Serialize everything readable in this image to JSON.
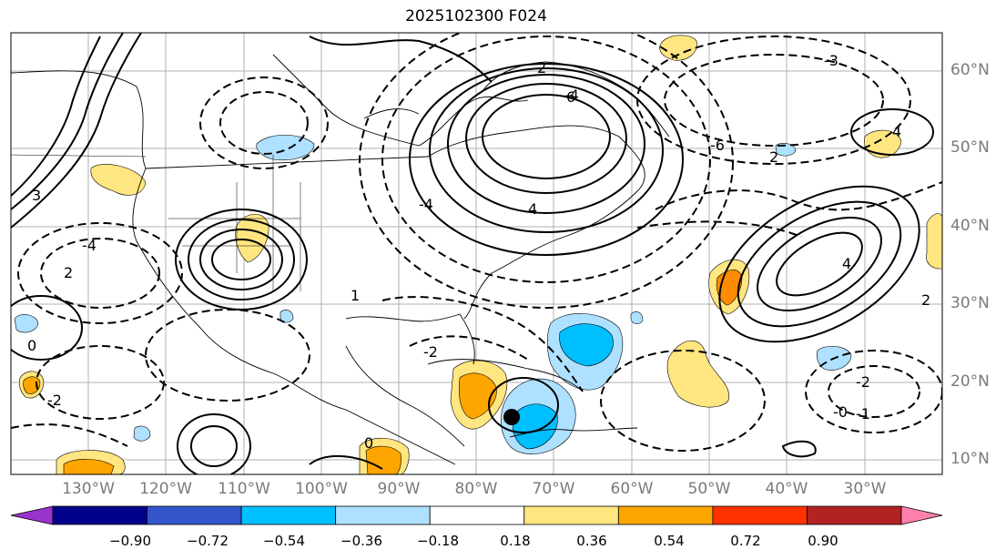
{
  "title": "2025102300 F024",
  "lat_labels": [
    "60°N",
    "50°N",
    "40°N",
    "30°N",
    "20°N",
    "10°N"
  ],
  "lon_labels": [
    "130°W",
    "120°W",
    "110°W",
    "100°W",
    "90°W",
    "80°W",
    "70°W",
    "60°W",
    "50°W",
    "40°W",
    "30°W"
  ],
  "contour_labels": [
    "2",
    "-2",
    "4",
    "-4",
    "6",
    "-6",
    "0",
    "1",
    "-1",
    "3",
    "-3",
    "-0"
  ],
  "marker": "storm-center",
  "colorbar": {
    "ticks": [
      "−0.90",
      "−0.72",
      "−0.54",
      "−0.36",
      "−0.18",
      "0.18",
      "0.36",
      "0.54",
      "0.72",
      "0.90"
    ],
    "colors": [
      "#9933cc",
      "#00008b",
      "#3355cc",
      "#00bfff",
      "#aee0ff",
      "#ffffff",
      "#ffe680",
      "#ffa500",
      "#ff3300",
      "#b22222",
      "#ff80aa"
    ],
    "extend": "both"
  },
  "colors": {
    "grid": "#b0b0b0",
    "contour": "#000000",
    "label": "#7a7a7a"
  }
}
